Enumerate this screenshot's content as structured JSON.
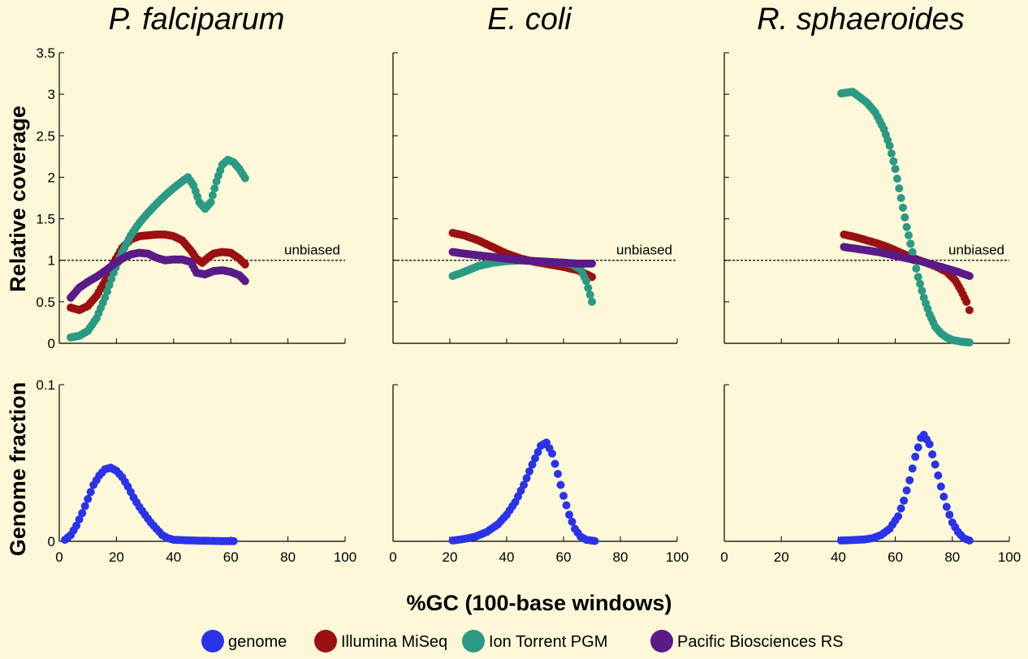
{
  "figure": {
    "colors": {
      "background": "#fcf8d8",
      "genome": "#2b33e8",
      "illumina": "#9b1010",
      "ion_torrent": "#2a9a84",
      "pacbio": "#5a1a88"
    },
    "ylabel_top": "Relative coverage",
    "ylabel_bottom": "Genome fraction",
    "xlabel": "%GC (100-base windows)",
    "unbiased_label": "unbiased",
    "legend": [
      {
        "key": "genome",
        "label": "genome"
      },
      {
        "key": "illumina",
        "label": "Illumina MiSeq"
      },
      {
        "key": "ion_torrent",
        "label": "Ion Torrent PGM"
      },
      {
        "key": "pacbio",
        "label": "Pacific Biosciences RS"
      }
    ]
  },
  "chart_data": [
    {
      "type": "scatter",
      "title": "P. falciparum",
      "xlim": [
        0,
        100
      ],
      "coverage": {
        "ylabel": "Relative coverage",
        "ylim": [
          0,
          3.5
        ],
        "yticks": [
          "0",
          "0.5",
          "1",
          "1.5",
          "2",
          "2.5",
          "3",
          "3.5"
        ],
        "reference_line": {
          "y": 1,
          "label": "unbiased"
        },
        "series": [
          {
            "name": "Illumina MiSeq",
            "color_key": "illumina",
            "points": [
              [
                4,
                0.43
              ],
              [
                7,
                0.4
              ],
              [
                10,
                0.45
              ],
              [
                13,
                0.57
              ],
              [
                16,
                0.75
              ],
              [
                19,
                0.97
              ],
              [
                22,
                1.15
              ],
              [
                25,
                1.25
              ],
              [
                28,
                1.29
              ],
              [
                31,
                1.3
              ],
              [
                34,
                1.31
              ],
              [
                37,
                1.31
              ],
              [
                40,
                1.29
              ],
              [
                43,
                1.24
              ],
              [
                46,
                1.12
              ],
              [
                48,
                1.02
              ],
              [
                50,
                0.97
              ],
              [
                52,
                1.03
              ],
              [
                54,
                1.08
              ],
              [
                57,
                1.1
              ],
              [
                60,
                1.09
              ],
              [
                63,
                1.02
              ],
              [
                65,
                0.95
              ]
            ]
          },
          {
            "name": "Ion Torrent PGM",
            "color_key": "ion_torrent",
            "points": [
              [
                4,
                0.07
              ],
              [
                7,
                0.09
              ],
              [
                10,
                0.15
              ],
              [
                13,
                0.3
              ],
              [
                16,
                0.55
              ],
              [
                19,
                0.85
              ],
              [
                22,
                1.1
              ],
              [
                25,
                1.3
              ],
              [
                28,
                1.45
              ],
              [
                31,
                1.57
              ],
              [
                34,
                1.68
              ],
              [
                37,
                1.78
              ],
              [
                40,
                1.87
              ],
              [
                43,
                1.95
              ],
              [
                45,
                2.0
              ],
              [
                47,
                1.9
              ],
              [
                49,
                1.7
              ],
              [
                51,
                1.62
              ],
              [
                53,
                1.7
              ],
              [
                55,
                1.95
              ],
              [
                57,
                2.15
              ],
              [
                59,
                2.21
              ],
              [
                61,
                2.18
              ],
              [
                63,
                2.1
              ],
              [
                65,
                1.99
              ]
            ]
          },
          {
            "name": "Pacific Biosciences RS",
            "color_key": "pacbio",
            "points": [
              [
                4,
                0.55
              ],
              [
                7,
                0.67
              ],
              [
                10,
                0.74
              ],
              [
                13,
                0.8
              ],
              [
                16,
                0.87
              ],
              [
                19,
                0.95
              ],
              [
                22,
                1.02
              ],
              [
                25,
                1.07
              ],
              [
                28,
                1.09
              ],
              [
                31,
                1.08
              ],
              [
                34,
                1.03
              ],
              [
                37,
                1.0
              ],
              [
                40,
                1.01
              ],
              [
                43,
                1.01
              ],
              [
                46,
                0.98
              ],
              [
                48,
                0.85
              ],
              [
                51,
                0.83
              ],
              [
                54,
                0.87
              ],
              [
                57,
                0.88
              ],
              [
                60,
                0.86
              ],
              [
                63,
                0.82
              ],
              [
                65,
                0.75
              ]
            ]
          }
        ]
      },
      "genome_fraction": {
        "ylabel": "Genome fraction",
        "ylim": [
          0,
          0.1
        ],
        "yticks": [
          "0",
          "0.1"
        ],
        "series": [
          {
            "name": "genome",
            "color_key": "genome",
            "points": [
              [
                2,
                0.001
              ],
              [
                4,
                0.004
              ],
              [
                6,
                0.01
              ],
              [
                8,
                0.018
              ],
              [
                10,
                0.027
              ],
              [
                12,
                0.036
              ],
              [
                14,
                0.042
              ],
              [
                16,
                0.046
              ],
              [
                18,
                0.047
              ],
              [
                20,
                0.045
              ],
              [
                22,
                0.041
              ],
              [
                24,
                0.035
              ],
              [
                26,
                0.028
              ],
              [
                28,
                0.022
              ],
              [
                30,
                0.017
              ],
              [
                32,
                0.012
              ],
              [
                34,
                0.008
              ],
              [
                36,
                0.004
              ],
              [
                38,
                0.002
              ],
              [
                40,
                0.001
              ],
              [
                45,
                0.0006
              ],
              [
                50,
                0.0004
              ],
              [
                55,
                0.0002
              ],
              [
                61,
                0.0001
              ]
            ]
          }
        ]
      }
    },
    {
      "type": "scatter",
      "title": "E. coli",
      "xlim": [
        0,
        100
      ],
      "coverage": {
        "ylim": [
          0,
          3.5
        ],
        "reference_line": {
          "y": 1,
          "label": "unbiased"
        },
        "series": [
          {
            "name": "Illumina MiSeq",
            "color_key": "illumina",
            "points": [
              [
                21,
                1.33
              ],
              [
                25,
                1.3
              ],
              [
                30,
                1.24
              ],
              [
                35,
                1.16
              ],
              [
                40,
                1.08
              ],
              [
                45,
                1.02
              ],
              [
                50,
                0.98
              ],
              [
                55,
                0.95
              ],
              [
                60,
                0.92
              ],
              [
                65,
                0.88
              ],
              [
                70,
                0.8
              ]
            ]
          },
          {
            "name": "Ion Torrent PGM",
            "color_key": "ion_torrent",
            "points": [
              [
                21,
                0.81
              ],
              [
                25,
                0.86
              ],
              [
                30,
                0.93
              ],
              [
                35,
                0.97
              ],
              [
                40,
                0.99
              ],
              [
                45,
                1.0
              ],
              [
                50,
                0.99
              ],
              [
                55,
                0.98
              ],
              [
                60,
                0.97
              ],
              [
                63,
                0.95
              ],
              [
                66,
                0.89
              ],
              [
                68,
                0.75
              ],
              [
                70,
                0.5
              ]
            ]
          },
          {
            "name": "Pacific Biosciences RS",
            "color_key": "pacbio",
            "points": [
              [
                21,
                1.1
              ],
              [
                25,
                1.08
              ],
              [
                30,
                1.06
              ],
              [
                35,
                1.04
              ],
              [
                40,
                1.02
              ],
              [
                45,
                1.0
              ],
              [
                50,
                0.99
              ],
              [
                55,
                0.98
              ],
              [
                60,
                0.97
              ],
              [
                65,
                0.96
              ],
              [
                70,
                0.96
              ]
            ]
          }
        ]
      },
      "genome_fraction": {
        "ylim": [
          0,
          0.1
        ],
        "series": [
          {
            "name": "genome",
            "color_key": "genome",
            "points": [
              [
                21,
                0.0005
              ],
              [
                25,
                0.0015
              ],
              [
                29,
                0.003
              ],
              [
                33,
                0.006
              ],
              [
                37,
                0.011
              ],
              [
                40,
                0.017
              ],
              [
                43,
                0.025
              ],
              [
                46,
                0.036
              ],
              [
                49,
                0.049
              ],
              [
                52,
                0.061
              ],
              [
                54,
                0.063
              ],
              [
                56,
                0.056
              ],
              [
                58,
                0.043
              ],
              [
                60,
                0.029
              ],
              [
                62,
                0.017
              ],
              [
                64,
                0.008
              ],
              [
                66,
                0.003
              ],
              [
                68,
                0.001
              ],
              [
                71,
                0.0002
              ]
            ]
          }
        ]
      }
    },
    {
      "type": "scatter",
      "title": "R. sphaeroides",
      "xlim": [
        0,
        100
      ],
      "coverage": {
        "ylim": [
          0,
          3.5
        ],
        "reference_line": {
          "y": 1,
          "label": "unbiased"
        },
        "series": [
          {
            "name": "Illumina MiSeq",
            "color_key": "illumina",
            "points": [
              [
                42,
                1.31
              ],
              [
                46,
                1.28
              ],
              [
                50,
                1.24
              ],
              [
                54,
                1.2
              ],
              [
                58,
                1.15
              ],
              [
                62,
                1.09
              ],
              [
                66,
                1.03
              ],
              [
                70,
                0.98
              ],
              [
                74,
                0.93
              ],
              [
                78,
                0.86
              ],
              [
                81,
                0.76
              ],
              [
                83,
                0.64
              ],
              [
                85,
                0.5
              ],
              [
                86,
                0.4
              ]
            ]
          },
          {
            "name": "Ion Torrent PGM",
            "color_key": "ion_torrent",
            "points": [
              [
                41,
                3.01
              ],
              [
                43,
                3.02
              ],
              [
                45,
                3.03
              ],
              [
                47,
                2.98
              ],
              [
                50,
                2.9
              ],
              [
                53,
                2.78
              ],
              [
                56,
                2.58
              ],
              [
                58,
                2.38
              ],
              [
                60,
                2.1
              ],
              [
                62,
                1.75
              ],
              [
                64,
                1.4
              ],
              [
                66,
                1.1
              ],
              [
                68,
                0.8
              ],
              [
                70,
                0.55
              ],
              [
                72,
                0.35
              ],
              [
                74,
                0.2
              ],
              [
                76,
                0.12
              ],
              [
                78,
                0.07
              ],
              [
                80,
                0.04
              ],
              [
                83,
                0.02
              ],
              [
                86,
                0.01
              ]
            ]
          },
          {
            "name": "Pacific Biosciences RS",
            "color_key": "pacbio",
            "points": [
              [
                42,
                1.16
              ],
              [
                46,
                1.14
              ],
              [
                50,
                1.12
              ],
              [
                54,
                1.1
              ],
              [
                58,
                1.07
              ],
              [
                62,
                1.04
              ],
              [
                66,
                1.01
              ],
              [
                70,
                0.98
              ],
              [
                74,
                0.94
              ],
              [
                78,
                0.9
              ],
              [
                82,
                0.86
              ],
              [
                86,
                0.81
              ]
            ]
          }
        ]
      },
      "genome_fraction": {
        "ylim": [
          0,
          0.1
        ],
        "series": [
          {
            "name": "genome",
            "color_key": "genome",
            "points": [
              [
                41,
                0.0005
              ],
              [
                45,
                0.0008
              ],
              [
                49,
                0.0012
              ],
              [
                52,
                0.002
              ],
              [
                55,
                0.004
              ],
              [
                58,
                0.008
              ],
              [
                61,
                0.016
              ],
              [
                63,
                0.026
              ],
              [
                65,
                0.039
              ],
              [
                67,
                0.054
              ],
              [
                69,
                0.066
              ],
              [
                70,
                0.068
              ],
              [
                72,
                0.062
              ],
              [
                74,
                0.049
              ],
              [
                76,
                0.035
              ],
              [
                78,
                0.022
              ],
              [
                80,
                0.012
              ],
              [
                82,
                0.006
              ],
              [
                84,
                0.002
              ],
              [
                86,
                0.0005
              ]
            ]
          }
        ]
      }
    }
  ]
}
